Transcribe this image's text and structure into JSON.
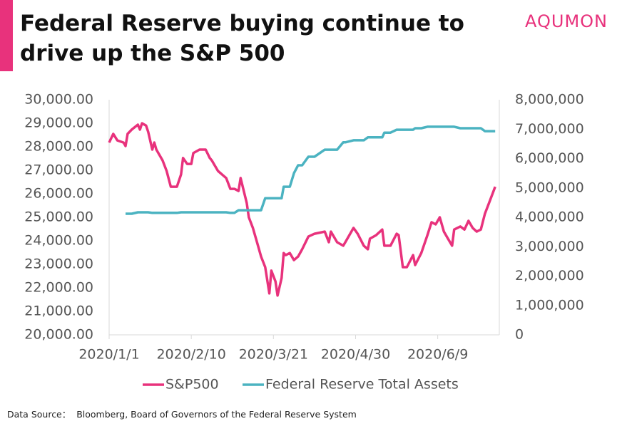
{
  "chart_data": {
    "type": "line",
    "title": "Federal Reserve buying continue to drive up the S&P 500",
    "logo": "AQUMON",
    "source": "Data Source：  Bloomberg, Board of Governors of the Federal Reserve System",
    "x": [
      "2020/1/1",
      "2020/1/3",
      "2020/1/5",
      "2020/1/8",
      "2020/1/9",
      "2020/1/10",
      "2020/1/12",
      "2020/1/15",
      "2020/1/16",
      "2020/1/17",
      "2020/1/19",
      "2020/1/20",
      "2020/1/22",
      "2020/1/23",
      "2020/1/24",
      "2020/1/27",
      "2020/1/29",
      "2020/1/31",
      "2020/2/3",
      "2020/2/5",
      "2020/2/6",
      "2020/2/8",
      "2020/2/10",
      "2020/2/11",
      "2020/2/14",
      "2020/2/17",
      "2020/2/19",
      "2020/2/20",
      "2020/2/23",
      "2020/2/25",
      "2020/2/27",
      "2020/2/29",
      "2020/3/2",
      "2020/3/4",
      "2020/3/5",
      "2020/3/8",
      "2020/3/9",
      "2020/3/11",
      "2020/3/13",
      "2020/3/15",
      "2020/3/17",
      "2020/3/19",
      "2020/3/20",
      "2020/3/22",
      "2020/3/23",
      "2020/3/25",
      "2020/3/26",
      "2020/3/27",
      "2020/3/29",
      "2020/3/31",
      "2020/4/2",
      "2020/4/4",
      "2020/4/7",
      "2020/4/10",
      "2020/4/15",
      "2020/4/17",
      "2020/4/18",
      "2020/4/21",
      "2020/4/24",
      "2020/4/25",
      "2020/4/29",
      "2020/5/1",
      "2020/5/4",
      "2020/5/6",
      "2020/5/7",
      "2020/5/10",
      "2020/5/13",
      "2020/5/14",
      "2020/5/17",
      "2020/5/20",
      "2020/5/21",
      "2020/5/23",
      "2020/5/25",
      "2020/5/28",
      "2020/5/29",
      "2020/6/1",
      "2020/6/4",
      "2020/6/6",
      "2020/6/8",
      "2020/6/10",
      "2020/6/12",
      "2020/6/14",
      "2020/6/16",
      "2020/6/17",
      "2020/6/20",
      "2020/6/22",
      "2020/6/24",
      "2020/6/26",
      "2020/6/28",
      "2020/6/30",
      "2020/7/2",
      "2020/7/4",
      "2020/7/7"
    ],
    "xlim": [
      "2020/1/1",
      "2020/7/9"
    ],
    "xticks": [
      "2020/1/1",
      "2020/2/10",
      "2020/3/21",
      "2020/4/30",
      "2020/6/9"
    ],
    "series": [
      {
        "name": "S&P500",
        "color": "#e8327c",
        "axis": "y",
        "values": [
          28180,
          28550,
          28270,
          28180,
          28030,
          28550,
          28730,
          28940,
          28730,
          29000,
          28900,
          28640,
          27880,
          28180,
          27880,
          27420,
          26970,
          26300,
          26300,
          26820,
          27520,
          27270,
          27270,
          27730,
          27880,
          27880,
          27520,
          27420,
          26970,
          26820,
          26670,
          26210,
          26210,
          26120,
          26670,
          25610,
          25000,
          24550,
          23940,
          23330,
          22880,
          21760,
          22730,
          22270,
          21670,
          22420,
          23480,
          23390,
          23480,
          23180,
          23330,
          23640,
          24180,
          24300,
          24390,
          23940,
          24390,
          23940,
          23790,
          23940,
          24550,
          24300,
          23790,
          23640,
          24090,
          24240,
          24480,
          23790,
          23790,
          24300,
          24240,
          22880,
          22880,
          23390,
          22970,
          23480,
          24240,
          24790,
          24700,
          25000,
          24390,
          24090,
          23790,
          24480,
          24610,
          24480,
          24850,
          24550,
          24390,
          24480,
          25150,
          25610,
          26300
        ]
      },
      {
        "name": "Federal Reserve Total Assets",
        "color": "#4bb3c1",
        "axis": "y2",
        "values": [
          null,
          null,
          null,
          null,
          4120000,
          4120000,
          4120000,
          4170000,
          4170000,
          4170000,
          4170000,
          4170000,
          4150000,
          4150000,
          4150000,
          4150000,
          4150000,
          4150000,
          4150000,
          4170000,
          4170000,
          4170000,
          4170000,
          4170000,
          4170000,
          4170000,
          4170000,
          4170000,
          4170000,
          4170000,
          4170000,
          4150000,
          4150000,
          4240000,
          4240000,
          4240000,
          4240000,
          4240000,
          4240000,
          4240000,
          4650000,
          4650000,
          4650000,
          4650000,
          4650000,
          4650000,
          5040000,
          5040000,
          5040000,
          5500000,
          5770000,
          5770000,
          6060000,
          6060000,
          6300000,
          6300000,
          6300000,
          6300000,
          6550000,
          6550000,
          6620000,
          6620000,
          6620000,
          6720000,
          6720000,
          6720000,
          6720000,
          6880000,
          6880000,
          6980000,
          6980000,
          6980000,
          6980000,
          6980000,
          7030000,
          7030000,
          7080000,
          7080000,
          7080000,
          7080000,
          7080000,
          7080000,
          7080000,
          7080000,
          7030000,
          7030000,
          7030000,
          7030000,
          7030000,
          7030000,
          6930000,
          6930000,
          6930000
        ]
      }
    ],
    "ylim": [
      20000,
      30000
    ],
    "yticks": [
      {
        "value": 20000,
        "label": "20,000.00"
      },
      {
        "value": 21000,
        "label": "21,000.00"
      },
      {
        "value": 22000,
        "label": "22,000.00"
      },
      {
        "value": 23000,
        "label": "23,000.00"
      },
      {
        "value": 24000,
        "label": "24,000.00"
      },
      {
        "value": 25000,
        "label": "25,000.00"
      },
      {
        "value": 26000,
        "label": "26,000.00"
      },
      {
        "value": 27000,
        "label": "27,000.00"
      },
      {
        "value": 28000,
        "label": "28,000.00"
      },
      {
        "value": 29000,
        "label": "29,000.00"
      },
      {
        "value": 30000,
        "label": "30,000.00"
      }
    ],
    "y2lim": [
      0,
      8000000
    ],
    "y2ticks": [
      0,
      {
        "value": 1000000,
        "label": "1,000,000"
      },
      {
        "value": 2000000,
        "label": "2,000,000"
      },
      {
        "value": 3000000,
        "label": "3,000,000"
      },
      {
        "value": 4000000,
        "label": "4,000,000"
      },
      {
        "value": 5000000,
        "label": "5,000,000"
      },
      {
        "value": 6000000,
        "label": "6,000,000"
      },
      {
        "value": 7000000,
        "label": "7,000,000"
      },
      {
        "value": 8000000,
        "label": "8,000,000"
      }
    ],
    "grid": false,
    "legend": "bottom"
  }
}
